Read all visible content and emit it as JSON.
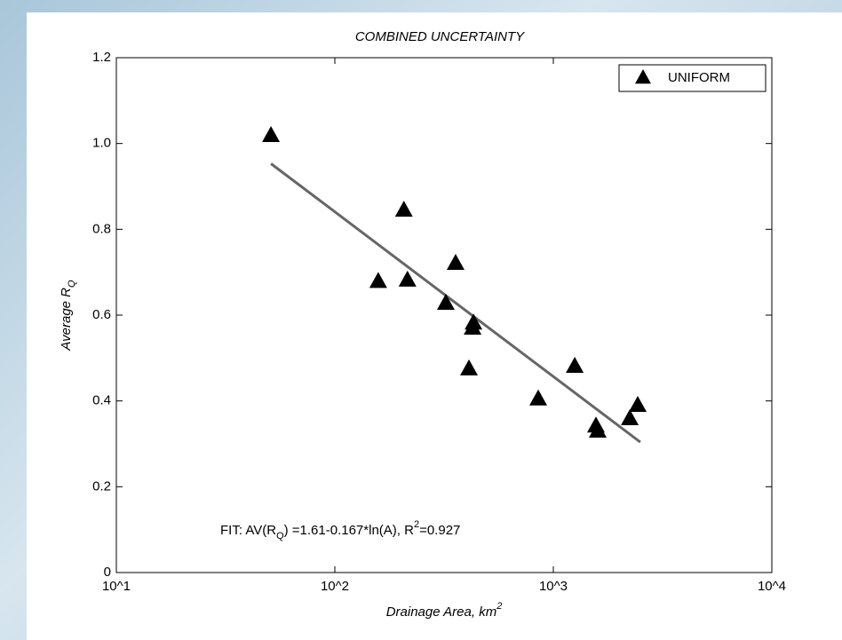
{
  "chart_data": {
    "type": "scatter",
    "title": "COMBINED UNCERTAINTY",
    "x_label": [
      "Drainage Area, km",
      "2"
    ],
    "y_label": [
      "Average R",
      "Q"
    ],
    "annotation": [
      "FIT: AV(R",
      "Q",
      ") =1.61-0.167*ln(A), R",
      "2",
      "=0.927"
    ],
    "x_scale": "log",
    "xlim": [
      10,
      10000
    ],
    "xticks": [
      {
        "value": 10,
        "label": "10^1"
      },
      {
        "value": 100,
        "label": "10^2"
      },
      {
        "value": 1000,
        "label": "10^3"
      },
      {
        "value": 10000,
        "label": "10^4"
      }
    ],
    "ylim": [
      0,
      1.2
    ],
    "yticks": [
      0,
      0.2,
      0.4,
      0.6,
      0.8,
      {
        "value": 1.0,
        "label": "1.0"
      },
      1.2
    ],
    "legend": "upper right",
    "series": [
      {
        "name": "UNIFORM",
        "color": "#000000",
        "x": [
          51,
          158,
          207,
          215,
          322,
          357,
          411,
          427,
          431,
          853,
          1253,
          1567,
          1597,
          2238,
          2433
        ],
        "values": [
          1.02,
          0.68,
          0.846,
          0.683,
          0.629,
          0.722,
          0.476,
          0.571,
          0.583,
          0.406,
          0.482,
          0.343,
          0.331,
          0.36,
          0.391
        ]
      }
    ],
    "fit": {
      "color": "#666666",
      "x": [
        51,
        2500
      ],
      "values": [
        0.953,
        0.304
      ]
    }
  }
}
